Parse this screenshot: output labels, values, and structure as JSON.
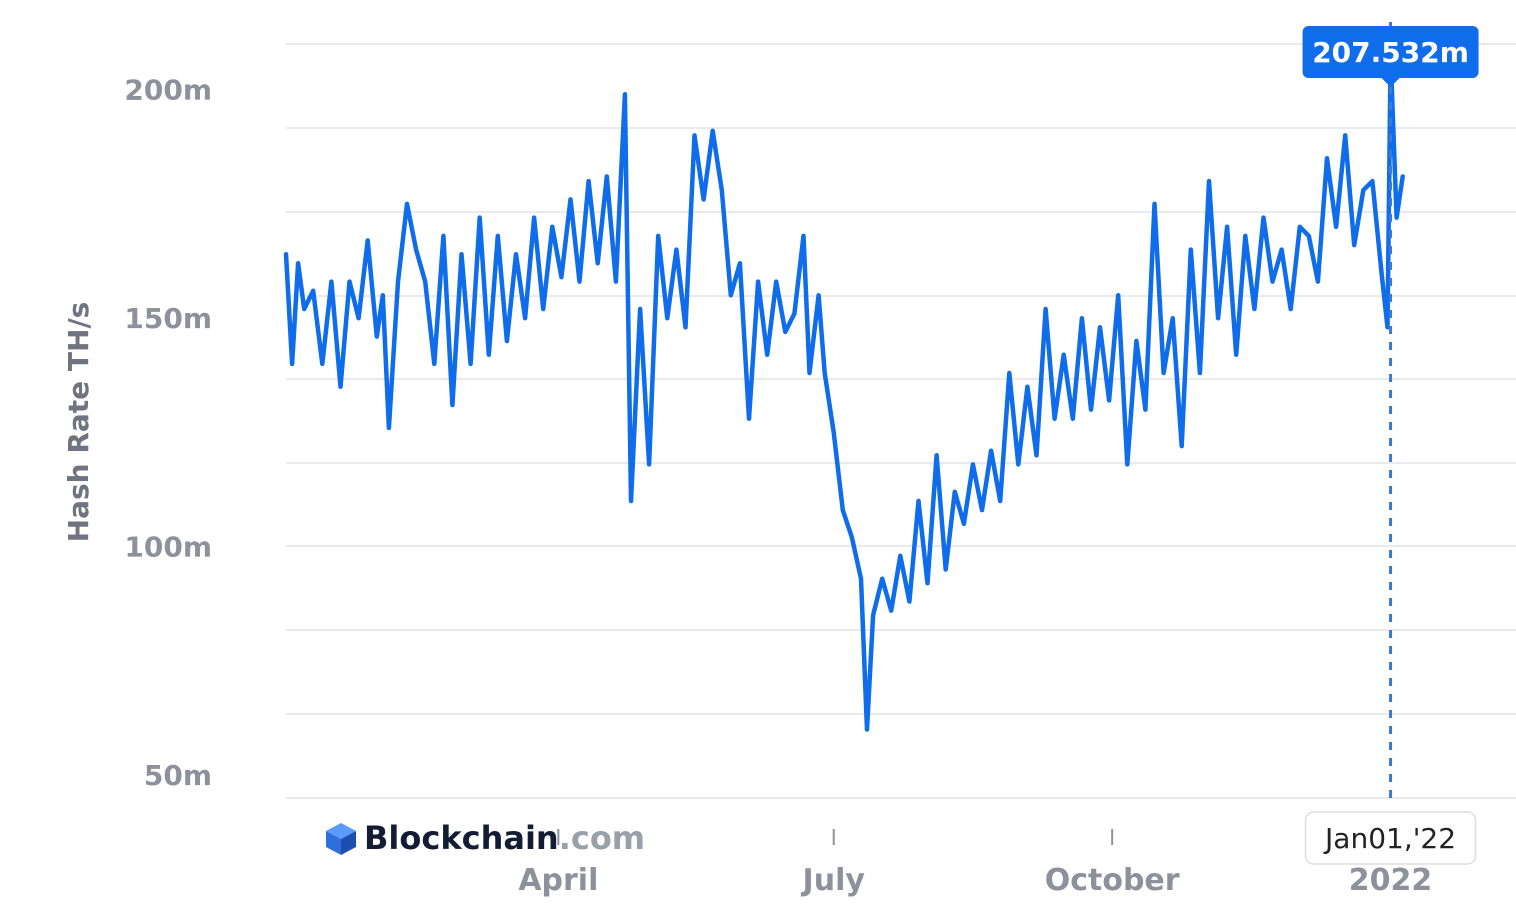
{
  "chart_data": {
    "type": "line",
    "ylabel": "Hash Rate TH/s",
    "ylim": [
      45,
      210
    ],
    "y_ticks": [
      "50m",
      "100m",
      "150m",
      "200m"
    ],
    "y_tick_values": [
      50,
      100,
      150,
      200
    ],
    "x_ticks": [
      "April",
      "July",
      "October",
      "2022"
    ],
    "x_tick_values": [
      "2021-04-01",
      "2021-07-01",
      "2021-10-01",
      "2022-01-01"
    ],
    "x_range": [
      "2021-01-01",
      "2022-01-18"
    ],
    "grid": true,
    "series": [
      {
        "color": "#0f6cea",
        "points": [
          [
            "2021-01-01",
            164
          ],
          [
            "2021-01-03",
            140
          ],
          [
            "2021-01-05",
            162
          ],
          [
            "2021-01-07",
            152
          ],
          [
            "2021-01-10",
            156
          ],
          [
            "2021-01-13",
            140
          ],
          [
            "2021-01-16",
            158
          ],
          [
            "2021-01-19",
            135
          ],
          [
            "2021-01-22",
            158
          ],
          [
            "2021-01-25",
            150
          ],
          [
            "2021-01-28",
            167
          ],
          [
            "2021-01-31",
            146
          ],
          [
            "2021-02-02",
            155
          ],
          [
            "2021-02-04",
            126
          ],
          [
            "2021-02-07",
            158
          ],
          [
            "2021-02-10",
            175
          ],
          [
            "2021-02-13",
            165
          ],
          [
            "2021-02-16",
            158
          ],
          [
            "2021-02-19",
            140
          ],
          [
            "2021-02-22",
            168
          ],
          [
            "2021-02-25",
            131
          ],
          [
            "2021-02-28",
            164
          ],
          [
            "2021-03-03",
            140
          ],
          [
            "2021-03-06",
            172
          ],
          [
            "2021-03-09",
            142
          ],
          [
            "2021-03-12",
            168
          ],
          [
            "2021-03-15",
            145
          ],
          [
            "2021-03-18",
            164
          ],
          [
            "2021-03-21",
            150
          ],
          [
            "2021-03-24",
            172
          ],
          [
            "2021-03-27",
            152
          ],
          [
            "2021-03-30",
            170
          ],
          [
            "2021-04-02",
            159
          ],
          [
            "2021-04-05",
            176
          ],
          [
            "2021-04-08",
            158
          ],
          [
            "2021-04-11",
            180
          ],
          [
            "2021-04-14",
            162
          ],
          [
            "2021-04-17",
            181
          ],
          [
            "2021-04-20",
            158
          ],
          [
            "2021-04-23",
            199
          ],
          [
            "2021-04-25",
            110
          ],
          [
            "2021-04-28",
            152
          ],
          [
            "2021-05-01",
            118
          ],
          [
            "2021-05-04",
            168
          ],
          [
            "2021-05-07",
            150
          ],
          [
            "2021-05-10",
            165
          ],
          [
            "2021-05-13",
            148
          ],
          [
            "2021-05-16",
            190
          ],
          [
            "2021-05-19",
            176
          ],
          [
            "2021-05-22",
            191
          ],
          [
            "2021-05-25",
            178
          ],
          [
            "2021-05-28",
            155
          ],
          [
            "2021-05-31",
            162
          ],
          [
            "2021-06-03",
            128
          ],
          [
            "2021-06-06",
            158
          ],
          [
            "2021-06-09",
            142
          ],
          [
            "2021-06-12",
            158
          ],
          [
            "2021-06-15",
            147
          ],
          [
            "2021-06-18",
            151
          ],
          [
            "2021-06-21",
            168
          ],
          [
            "2021-06-23",
            138
          ],
          [
            "2021-06-26",
            155
          ],
          [
            "2021-06-28",
            138
          ],
          [
            "2021-07-01",
            125
          ],
          [
            "2021-07-04",
            108
          ],
          [
            "2021-07-07",
            102
          ],
          [
            "2021-07-10",
            93
          ],
          [
            "2021-07-12",
            60
          ],
          [
            "2021-07-14",
            85
          ],
          [
            "2021-07-17",
            93
          ],
          [
            "2021-07-20",
            86
          ],
          [
            "2021-07-23",
            98
          ],
          [
            "2021-07-26",
            88
          ],
          [
            "2021-07-29",
            110
          ],
          [
            "2021-08-01",
            92
          ],
          [
            "2021-08-04",
            120
          ],
          [
            "2021-08-07",
            95
          ],
          [
            "2021-08-10",
            112
          ],
          [
            "2021-08-13",
            105
          ],
          [
            "2021-08-16",
            118
          ],
          [
            "2021-08-19",
            108
          ],
          [
            "2021-08-22",
            121
          ],
          [
            "2021-08-25",
            110
          ],
          [
            "2021-08-28",
            138
          ],
          [
            "2021-08-31",
            118
          ],
          [
            "2021-09-03",
            135
          ],
          [
            "2021-09-06",
            120
          ],
          [
            "2021-09-09",
            152
          ],
          [
            "2021-09-12",
            128
          ],
          [
            "2021-09-15",
            142
          ],
          [
            "2021-09-18",
            128
          ],
          [
            "2021-09-21",
            150
          ],
          [
            "2021-09-24",
            130
          ],
          [
            "2021-09-27",
            148
          ],
          [
            "2021-09-30",
            132
          ],
          [
            "2021-10-03",
            155
          ],
          [
            "2021-10-06",
            118
          ],
          [
            "2021-10-09",
            145
          ],
          [
            "2021-10-12",
            130
          ],
          [
            "2021-10-15",
            175
          ],
          [
            "2021-10-18",
            138
          ],
          [
            "2021-10-21",
            150
          ],
          [
            "2021-10-24",
            122
          ],
          [
            "2021-10-27",
            165
          ],
          [
            "2021-10-30",
            138
          ],
          [
            "2021-11-02",
            180
          ],
          [
            "2021-11-05",
            150
          ],
          [
            "2021-11-08",
            170
          ],
          [
            "2021-11-11",
            142
          ],
          [
            "2021-11-14",
            168
          ],
          [
            "2021-11-17",
            152
          ],
          [
            "2021-11-20",
            172
          ],
          [
            "2021-11-23",
            158
          ],
          [
            "2021-11-26",
            165
          ],
          [
            "2021-11-29",
            152
          ],
          [
            "2021-12-02",
            170
          ],
          [
            "2021-12-05",
            168
          ],
          [
            "2021-12-08",
            158
          ],
          [
            "2021-12-11",
            185
          ],
          [
            "2021-12-14",
            170
          ],
          [
            "2021-12-17",
            190
          ],
          [
            "2021-12-20",
            166
          ],
          [
            "2021-12-23",
            178
          ],
          [
            "2021-12-26",
            180
          ],
          [
            "2021-12-29",
            160
          ],
          [
            "2021-12-31",
            148
          ],
          [
            "2022-01-01",
            207.532
          ],
          [
            "2022-01-03",
            172
          ],
          [
            "2022-01-05",
            181
          ]
        ]
      }
    ],
    "annotation": {
      "label": "207.532m",
      "x": "2022-01-01",
      "y": 207.532
    },
    "x_hover_label": "Jan01,'22"
  },
  "branding": {
    "name_main": "Blockchain",
    "name_suffix": ".com",
    "logo_color": "#2f6fdc"
  }
}
